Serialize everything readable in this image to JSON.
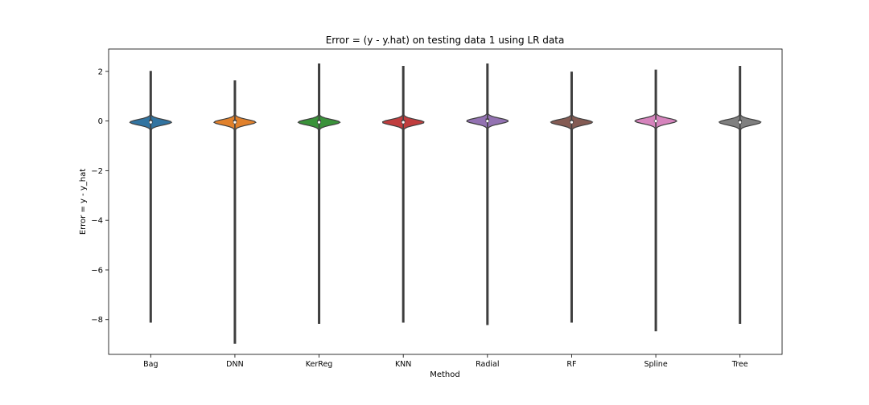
{
  "chart_data": {
    "type": "violin",
    "title": "Error = (y - y.hat) on testing data 1 using LR data",
    "xlabel": "Method",
    "ylabel": "Error = y - y_hat",
    "ylim": [
      -9.4,
      2.9
    ],
    "y_ticks": [
      2,
      0,
      -2,
      -4,
      -6,
      -8
    ],
    "y_tick_labels": [
      "2",
      "0",
      "−2",
      "−4",
      "−6",
      "−8"
    ],
    "grid": false,
    "legend": "none",
    "categories": [
      "Bag",
      "DNN",
      "KerReg",
      "KNN",
      "Radial",
      "RF",
      "Spline",
      "Tree"
    ],
    "colors": [
      "#3274a1",
      "#e1812c",
      "#3a923a",
      "#c03d3e",
      "#9372b2",
      "#845b53",
      "#d684bd",
      "#7f7f7f"
    ],
    "series": [
      {
        "category": "Bag",
        "min": -8.1,
        "max": 2.0,
        "q1": -0.1,
        "median": -0.05,
        "q3": 0.05
      },
      {
        "category": "DNN",
        "min": -8.95,
        "max": 1.62,
        "q1": -0.1,
        "median": -0.05,
        "q3": 0.05
      },
      {
        "category": "KerReg",
        "min": -8.15,
        "max": 2.3,
        "q1": -0.1,
        "median": -0.05,
        "q3": 0.05
      },
      {
        "category": "KNN",
        "min": -8.1,
        "max": 2.2,
        "q1": -0.1,
        "median": -0.05,
        "q3": 0.05
      },
      {
        "category": "Radial",
        "min": -8.2,
        "max": 2.3,
        "q1": -0.05,
        "median": 0.0,
        "q3": 0.1
      },
      {
        "category": "RF",
        "min": -8.1,
        "max": 1.97,
        "q1": -0.1,
        "median": -0.05,
        "q3": 0.05
      },
      {
        "category": "Spline",
        "min": -8.45,
        "max": 2.05,
        "q1": -0.05,
        "median": 0.0,
        "q3": 0.05
      },
      {
        "category": "Tree",
        "min": -8.15,
        "max": 2.2,
        "q1": -0.1,
        "median": -0.05,
        "q3": 0.05
      }
    ]
  }
}
